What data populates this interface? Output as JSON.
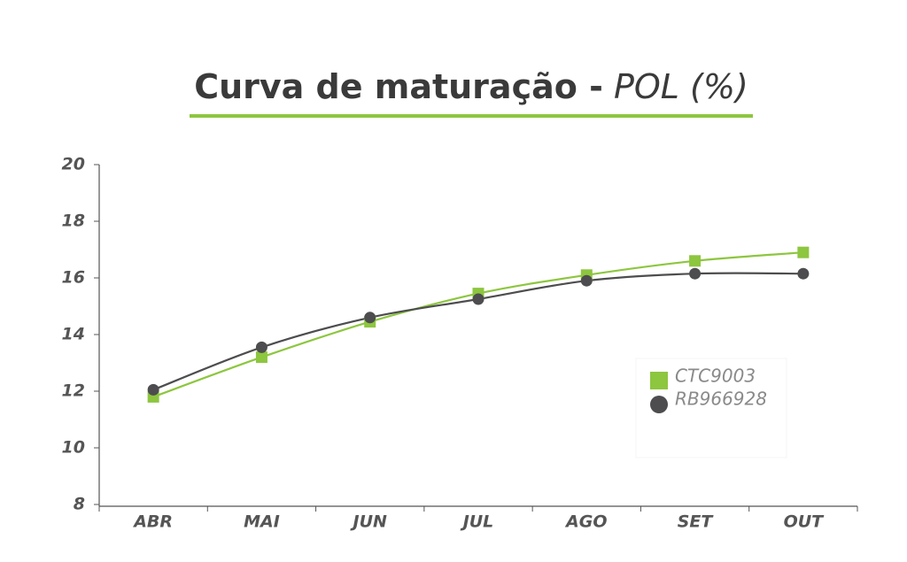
{
  "chart_data": {
    "type": "line",
    "title": [
      "Curva de maturação -",
      "POL (%)"
    ],
    "categories": [
      "ABR",
      "MAI",
      "JUN",
      "JUL",
      "AGO",
      "SET",
      "OUT"
    ],
    "series": [
      {
        "name": "CTC9003",
        "color": "#8dc63f",
        "marker": "square",
        "values": [
          11.8,
          13.2,
          14.45,
          15.45,
          16.1,
          16.6,
          16.9
        ]
      },
      {
        "name": "RB966928",
        "color": "#4d4d4f",
        "marker": "circle",
        "values": [
          12.05,
          13.55,
          14.6,
          15.25,
          15.9,
          16.15,
          16.15
        ]
      }
    ],
    "ylim": [
      8,
      20
    ],
    "yticks": [
      8,
      10,
      12,
      14,
      16,
      18,
      20
    ],
    "title_rule_color": "#8dc63f"
  }
}
